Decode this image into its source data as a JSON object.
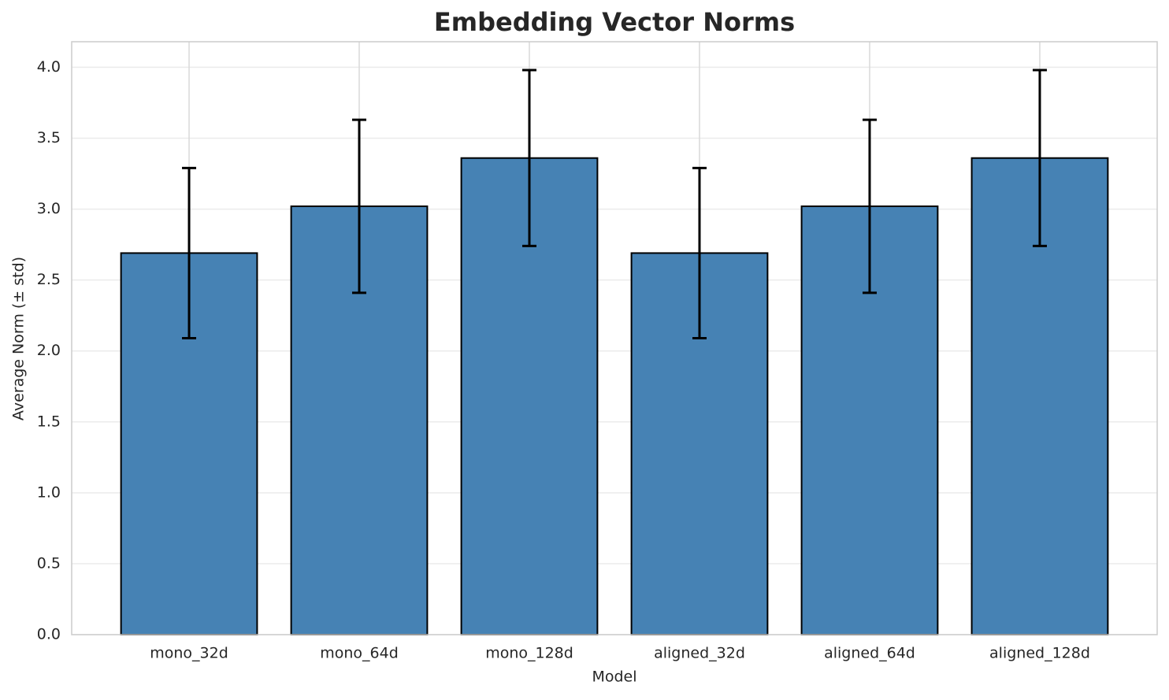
{
  "chart_data": {
    "type": "bar",
    "title": "Embedding Vector Norms",
    "x_label": "Model",
    "y_label": "Average Norm (± std)",
    "categories": [
      "mono_32d",
      "mono_64d",
      "mono_128d",
      "aligned_32d",
      "aligned_64d",
      "aligned_128d"
    ],
    "values": [
      2.69,
      3.02,
      3.36,
      2.69,
      3.02,
      3.36
    ],
    "errors": [
      0.6,
      0.61,
      0.62,
      0.6,
      0.61,
      0.62
    ],
    "color": "#4682b4",
    "ylim": [
      0,
      4.18
    ],
    "yticks": [
      {
        "value": 0,
        "label": "0.0"
      },
      0.5,
      {
        "value": 1,
        "label": "1.0"
      },
      1.5,
      {
        "value": 2,
        "label": "2.0"
      },
      2.5,
      {
        "value": 3,
        "label": "3.0"
      },
      3.5,
      {
        "value": 4,
        "label": "4.0"
      }
    ],
    "grid": true
  }
}
